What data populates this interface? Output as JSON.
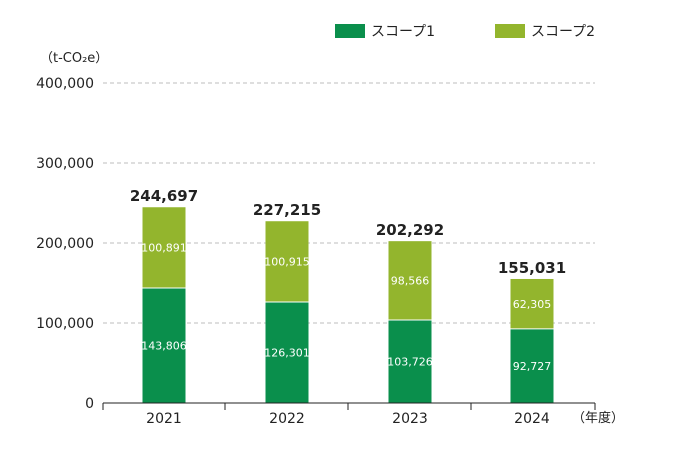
{
  "chart_data": {
    "type": "bar",
    "stacked": true,
    "categories": [
      "2021",
      "2022",
      "2023",
      "2024"
    ],
    "series": [
      {
        "name": "スコープ1",
        "color": "#0a8f4c",
        "values": [
          143806,
          126301,
          103726,
          92727
        ],
        "labels": [
          "143,806",
          "126,301",
          "103,726",
          "92,727"
        ]
      },
      {
        "name": "スコープ2",
        "color": "#93b52d",
        "values": [
          100891,
          100915,
          98566,
          62305
        ],
        "labels": [
          "100,891",
          "100,915",
          "98,566",
          "62,305"
        ]
      }
    ],
    "totals": [
      "244,697",
      "227,215",
      "202,292",
      "155,031"
    ],
    "ylim": [
      0,
      400000
    ],
    "yticks": [
      0,
      100000,
      200000,
      300000,
      400000
    ],
    "ytick_labels": [
      "0",
      "100,000",
      "200,000",
      "300,000",
      "400,000"
    ],
    "ylabel": "（t-CO₂e）",
    "xlabel": "（年度）",
    "grid": "dashed-horizontal",
    "legend_position": "top-right"
  }
}
